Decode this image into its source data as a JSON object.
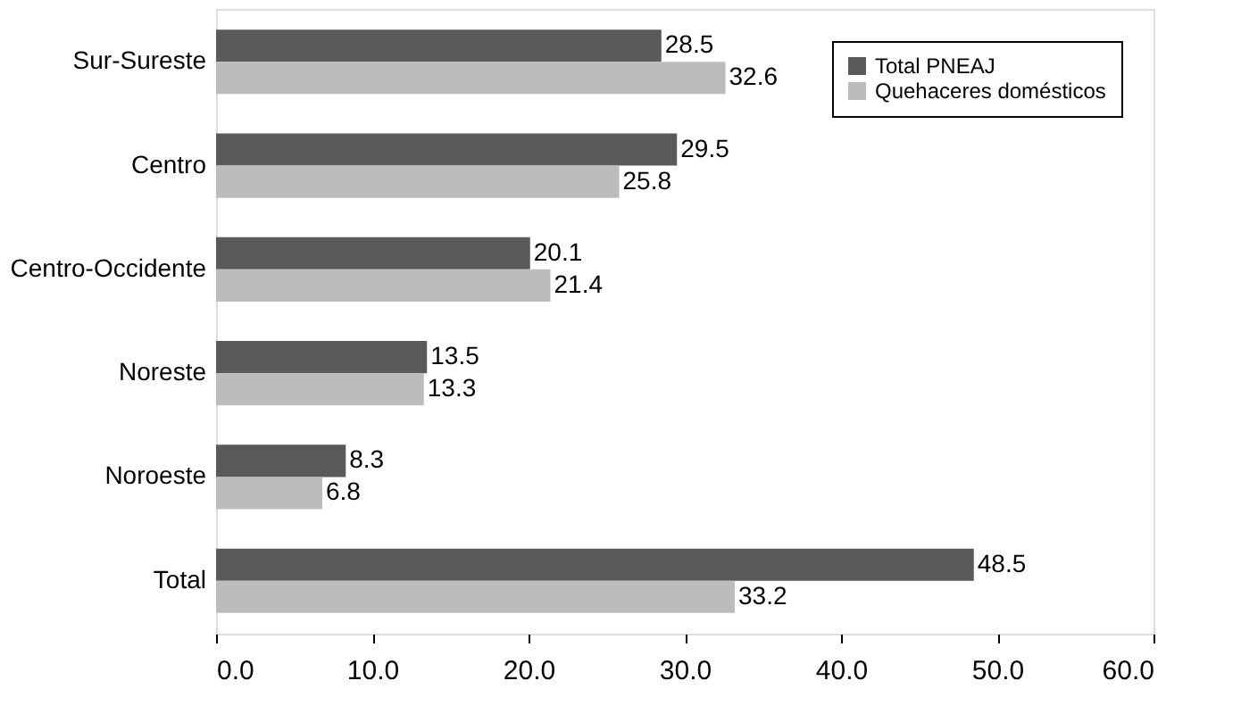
{
  "chart_data": {
    "type": "bar",
    "orientation": "horizontal",
    "categories": [
      "Sur-Sureste",
      "Centro",
      "Centro-Occidente",
      "Noreste",
      "Noroeste",
      "Total"
    ],
    "series": [
      {
        "name": "Total PNEAJ",
        "color": "#5a5a5a",
        "values": [
          28.5,
          29.5,
          20.1,
          13.5,
          8.3,
          48.5
        ]
      },
      {
        "name": "Quehaceres domésticos",
        "color": "#bcbcbe",
        "values": [
          32.6,
          25.8,
          21.4,
          13.3,
          6.8,
          33.2
        ]
      }
    ],
    "xlim": [
      0,
      60
    ],
    "xticks": [
      {
        "value": 0,
        "label": "0.0"
      },
      {
        "value": 10,
        "label": "10.0"
      },
      {
        "value": 20,
        "label": "20.0"
      },
      {
        "value": 30,
        "label": "30.0"
      },
      {
        "value": 40,
        "label": "40.0"
      },
      {
        "value": 50,
        "label": "50.0"
      },
      {
        "value": 60,
        "label": "60.0"
      }
    ],
    "data_labels": true,
    "legend": "top right",
    "grid": false
  }
}
